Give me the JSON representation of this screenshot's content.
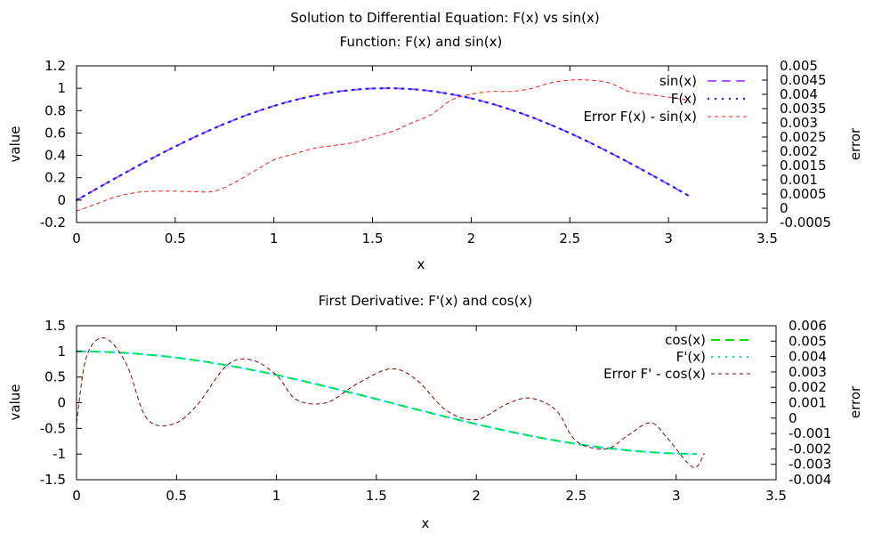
{
  "figure_title": "Solution to Differential Equation: F(x) vs sin(x)",
  "colors": {
    "sin": "#b05cff",
    "F": "#1f1fff",
    "error": "#e8261e",
    "cos": "#00e000",
    "Fprime": "#00e0e0",
    "errorPrime": "#8b0000"
  },
  "chart_data": [
    {
      "type": "line",
      "title": "Function: F(x) and sin(x)",
      "xlabel": "x",
      "ylabel": "value",
      "y2label": "error",
      "xlim": [
        0,
        3.5
      ],
      "ylim": [
        -0.2,
        1.2
      ],
      "y2lim": [
        -0.0005,
        0.005
      ],
      "xticks": [
        "0",
        "0.5",
        "1",
        "1.5",
        "2",
        "2.5",
        "3",
        "3.5"
      ],
      "yticks": [
        "-0.2",
        "0",
        "0.2",
        "0.4",
        "0.6",
        "0.8",
        "1",
        "1.2"
      ],
      "y2ticks": [
        "-0.0005",
        "0",
        "0.0005",
        "0.001",
        "0.0015",
        "0.002",
        "0.0025",
        "0.003",
        "0.0035",
        "0.004",
        "0.0045",
        "0.005"
      ],
      "legend_position": "top-right",
      "series": [
        {
          "name": "sin(x)",
          "axis": "y",
          "style": "dashed",
          "function": "sin(x)",
          "x_range": [
            0,
            3.1
          ]
        },
        {
          "name": "F(x)",
          "axis": "y",
          "style": "dotted",
          "function": "sin(x)",
          "x_range": [
            0,
            3.1
          ]
        },
        {
          "name": "Error F(x) - sin(x)",
          "axis": "y2",
          "style": "dashed",
          "x": [
            0,
            0.1,
            0.2,
            0.3,
            0.4,
            0.5,
            0.6,
            0.7,
            0.8,
            0.9,
            1.0,
            1.1,
            1.2,
            1.3,
            1.4,
            1.5,
            1.6,
            1.7,
            1.8,
            1.9,
            2.0,
            2.1,
            2.2,
            2.3,
            2.4,
            2.5,
            2.6,
            2.7,
            2.8,
            2.9,
            3.0,
            3.1
          ],
          "values": [
            -0.0001,
            0.00015,
            0.0004,
            0.00055,
            0.0006,
            0.0006,
            0.00058,
            0.0006,
            0.0009,
            0.0013,
            0.0017,
            0.0019,
            0.0021,
            0.0022,
            0.0023,
            0.0025,
            0.0027,
            0.003,
            0.0033,
            0.0038,
            0.004,
            0.0041,
            0.0041,
            0.0042,
            0.0044,
            0.0045,
            0.0045,
            0.0044,
            0.0041,
            0.004,
            0.0039,
            0.0038
          ]
        }
      ]
    },
    {
      "type": "line",
      "title": "First Derivative: F'(x) and cos(x)",
      "xlabel": "x",
      "ylabel": "value",
      "y2label": "error",
      "xlim": [
        0,
        3.5
      ],
      "ylim": [
        -1.5,
        1.5
      ],
      "y2lim": [
        -0.004,
        0.006
      ],
      "xticks": [
        "0",
        "0.5",
        "1",
        "1.5",
        "2",
        "2.5",
        "3",
        "3.5"
      ],
      "yticks": [
        "-1.5",
        "-1",
        "-0.5",
        "0",
        "0.5",
        "1",
        "1.5"
      ],
      "y2ticks": [
        "-0.004",
        "-0.003",
        "-0.002",
        "-0.001",
        "0",
        "0.001",
        "0.002",
        "0.003",
        "0.004",
        "0.005",
        "0.006"
      ],
      "legend_position": "top-right",
      "series": [
        {
          "name": "cos(x)",
          "axis": "y",
          "style": "dashed",
          "function": "cos(x)",
          "x_range": [
            0,
            3.1
          ]
        },
        {
          "name": "F'(x)",
          "axis": "y",
          "style": "dotted",
          "function": "cos(x)",
          "x_range": [
            0,
            3.1
          ]
        },
        {
          "name": "Error F' - cos(x)",
          "axis": "y2",
          "style": "dashed",
          "x": [
            0,
            0.05,
            0.14,
            0.25,
            0.35,
            0.48,
            0.6,
            0.75,
            0.87,
            1.0,
            1.1,
            1.25,
            1.4,
            1.57,
            1.7,
            1.85,
            2.0,
            2.15,
            2.27,
            2.4,
            2.5,
            2.65,
            2.75,
            2.87,
            2.95,
            3.05,
            3.1,
            3.14
          ],
          "values": [
            -0.0003,
            0.004,
            0.0052,
            0.0035,
            0.0,
            -0.0004,
            0.0008,
            0.0034,
            0.0038,
            0.0028,
            0.0012,
            0.001,
            0.0022,
            0.0032,
            0.0025,
            0.0005,
            -0.0001,
            0.0009,
            0.0013,
            0.0005,
            -0.0015,
            -0.002,
            -0.0012,
            -0.0003,
            -0.0012,
            -0.0028,
            -0.0032,
            -0.0023
          ]
        }
      ]
    }
  ]
}
